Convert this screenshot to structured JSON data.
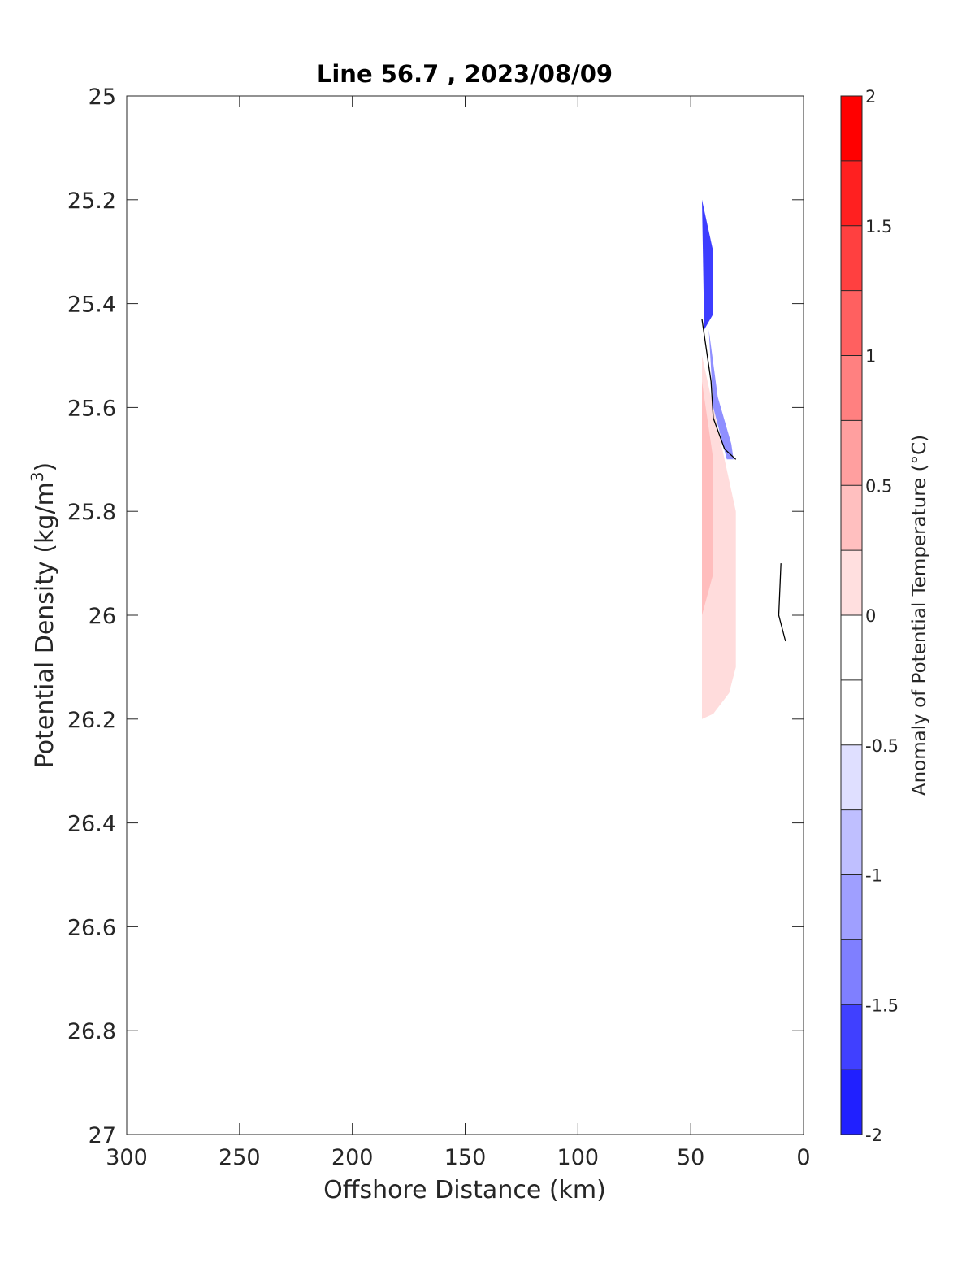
{
  "chart_data": {
    "type": "contour",
    "title": "Line 56.7 , 2023/08/09",
    "xlabel": "Offshore Distance (km)",
    "ylabel_main": "Potential Density (kg/m",
    "ylabel_sup": "3",
    "ylabel_close": ")",
    "colorbar_label": "Anomaly of Potential Temperature (°C)",
    "xlim": [
      300,
      0
    ],
    "ylim": [
      25,
      27
    ],
    "x_reversed": true,
    "y_reversed": true,
    "xticks": [
      300,
      250,
      200,
      150,
      100,
      50,
      0
    ],
    "xtick_labels": [
      "300",
      "250",
      "200",
      "150",
      "100",
      "50",
      "0"
    ],
    "yticks": [
      25,
      25.2,
      25.4,
      25.6,
      25.8,
      26,
      26.2,
      26.4,
      26.6,
      26.8,
      27
    ],
    "ytick_labels": [
      "25",
      "25.2",
      "25.4",
      "25.6",
      "25.8",
      "26",
      "26.2",
      "26.4",
      "26.6",
      "26.8",
      "27"
    ],
    "colorbar": {
      "range": [
        -2,
        2
      ],
      "level_step": 0.25,
      "ticks": [
        2,
        1.5,
        1,
        0.5,
        0,
        -0.5,
        -1,
        -1.5,
        -2
      ],
      "tick_labels": [
        "2",
        "1.5",
        "1",
        "0.5",
        "0",
        "-0.5",
        "-1",
        "-1.5",
        "-2"
      ],
      "bands": [
        {
          "from": 1.75,
          "to": 2.0,
          "color": "#ff0000"
        },
        {
          "from": 1.5,
          "to": 1.75,
          "color": "#ff2020"
        },
        {
          "from": 1.25,
          "to": 1.5,
          "color": "#ff4040"
        },
        {
          "from": 1.0,
          "to": 1.25,
          "color": "#ff6060"
        },
        {
          "from": 0.75,
          "to": 1.0,
          "color": "#ff8080"
        },
        {
          "from": 0.5,
          "to": 0.75,
          "color": "#ff9f9f"
        },
        {
          "from": 0.25,
          "to": 0.5,
          "color": "#ffbfbf"
        },
        {
          "from": 0.0,
          "to": 0.25,
          "color": "#ffdfdf"
        },
        {
          "from": -0.25,
          "to": 0.0,
          "color": "#ffffff"
        },
        {
          "from": -0.5,
          "to": -0.25,
          "color": "#ffffff"
        },
        {
          "from": -0.75,
          "to": -0.5,
          "color": "#dfdfff"
        },
        {
          "from": -1.0,
          "to": -0.75,
          "color": "#bfbfff"
        },
        {
          "from": -1.25,
          "to": -1.0,
          "color": "#9f9fff"
        },
        {
          "from": -1.5,
          "to": -1.25,
          "color": "#7f7fff"
        },
        {
          "from": -1.75,
          "to": -1.5,
          "color": "#4040ff"
        },
        {
          "from": -2.0,
          "to": -1.75,
          "color": "#2020ff"
        }
      ]
    },
    "regions": [
      {
        "name": "warm-anomaly-light",
        "level": 0.25,
        "color": "#ffdcdc",
        "polygon": [
          [
            45,
            25.5
          ],
          [
            40,
            25.6
          ],
          [
            30,
            25.8
          ],
          [
            30,
            26.1
          ],
          [
            33,
            26.15
          ],
          [
            40,
            26.19
          ],
          [
            45,
            26.2
          ]
        ]
      },
      {
        "name": "warm-anomaly-medium",
        "level": 0.5,
        "color": "#ffbdbd",
        "polygon": [
          [
            45,
            25.55
          ],
          [
            40,
            25.7
          ],
          [
            40,
            25.92
          ],
          [
            45,
            26.0
          ]
        ]
      },
      {
        "name": "cold-anomaly-upper",
        "level": -1.5,
        "color": "#3d3dff",
        "polygon": [
          [
            45,
            25.2
          ],
          [
            40,
            25.3
          ],
          [
            40,
            25.42
          ],
          [
            44,
            25.45
          ]
        ]
      },
      {
        "name": "cold-anomaly-lower",
        "level": -0.75,
        "color": "#8f8fff",
        "polygon": [
          [
            42,
            25.45
          ],
          [
            38,
            25.58
          ],
          [
            32,
            25.67
          ],
          [
            31,
            25.7
          ],
          [
            34,
            25.7
          ],
          [
            40,
            25.6
          ]
        ]
      }
    ],
    "contours": [
      {
        "name": "zero-contour-offshore",
        "points": [
          [
            45,
            25.43
          ],
          [
            41,
            25.55
          ],
          [
            40,
            25.62
          ],
          [
            35,
            25.68
          ],
          [
            30,
            25.7
          ]
        ]
      },
      {
        "name": "zero-contour-nearshore",
        "points": [
          [
            10,
            25.9
          ],
          [
            11,
            26.0
          ],
          [
            8,
            26.05
          ]
        ]
      }
    ]
  }
}
